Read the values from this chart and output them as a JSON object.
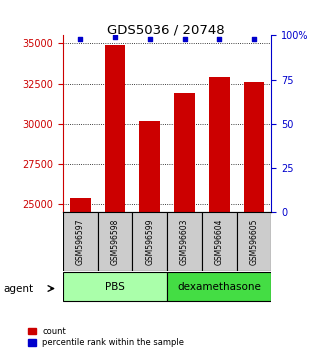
{
  "title": "GDS5036 / 20748",
  "samples": [
    "GSM596597",
    "GSM596598",
    "GSM596599",
    "GSM596603",
    "GSM596604",
    "GSM596605"
  ],
  "counts": [
    25400,
    34900,
    30200,
    31900,
    32900,
    32600
  ],
  "percentile_ranks": [
    98,
    99,
    98,
    98,
    98,
    98
  ],
  "y_min": 24500,
  "y_max": 35500,
  "y_ticks": [
    25000,
    27500,
    30000,
    32500,
    35000
  ],
  "y_ticks_right": [
    0,
    25,
    50,
    75,
    100
  ],
  "groups": [
    {
      "label": "PBS",
      "color": "#aaffaa",
      "start": 0,
      "end": 2
    },
    {
      "label": "dexamethasone",
      "color": "#44dd44",
      "start": 3,
      "end": 5
    }
  ],
  "bar_color": "#cc0000",
  "dot_color": "#0000cc",
  "bar_width": 0.6,
  "sample_box_color": "#cccccc",
  "left_axis_color": "#cc0000",
  "right_axis_color": "#0000cc",
  "legend_count_label": "count",
  "legend_pct_label": "percentile rank within the sample",
  "agent_label": "agent"
}
